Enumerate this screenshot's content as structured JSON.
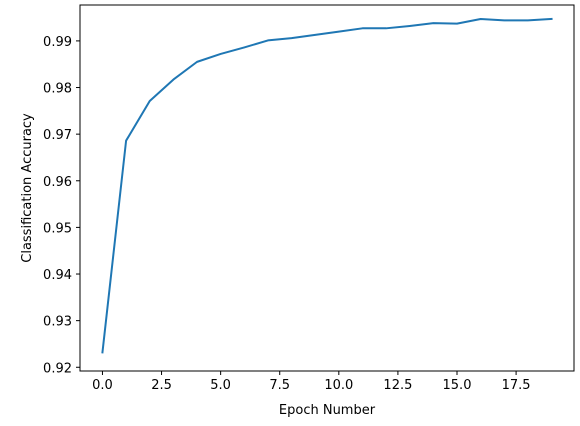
{
  "chart_data": {
    "type": "line",
    "title": "",
    "xlabel": "Epoch Number",
    "ylabel": "Classification Accuracy",
    "xlim": [
      -0.95,
      19.95
    ],
    "ylim": [
      0.9192,
      0.9977
    ],
    "x_ticks": [
      0.0,
      2.5,
      5.0,
      7.5,
      10.0,
      12.5,
      15.0,
      17.5
    ],
    "x_tick_labels": [
      "0.0",
      "2.5",
      "5.0",
      "7.5",
      "10.0",
      "12.5",
      "15.0",
      "17.5"
    ],
    "y_ticks": [
      0.92,
      0.93,
      0.94,
      0.95,
      0.96,
      0.97,
      0.98,
      0.99
    ],
    "y_tick_labels": [
      "0.92",
      "0.93",
      "0.94",
      "0.95",
      "0.96",
      "0.97",
      "0.98",
      "0.99"
    ],
    "grid": false,
    "legend": "none",
    "series": [
      {
        "color": "#1f77b4",
        "x": [
          0,
          1,
          2,
          3,
          4,
          5,
          6,
          7,
          8,
          9,
          10,
          11,
          12,
          13,
          14,
          15,
          16,
          17,
          18,
          19
        ],
        "values": [
          0.9232,
          0.9686,
          0.9771,
          0.9817,
          0.9855,
          0.9872,
          0.9886,
          0.9901,
          0.9906,
          0.9913,
          0.992,
          0.9927,
          0.9927,
          0.9932,
          0.9938,
          0.9937,
          0.9947,
          0.9944,
          0.9944,
          0.9947
        ]
      }
    ]
  }
}
